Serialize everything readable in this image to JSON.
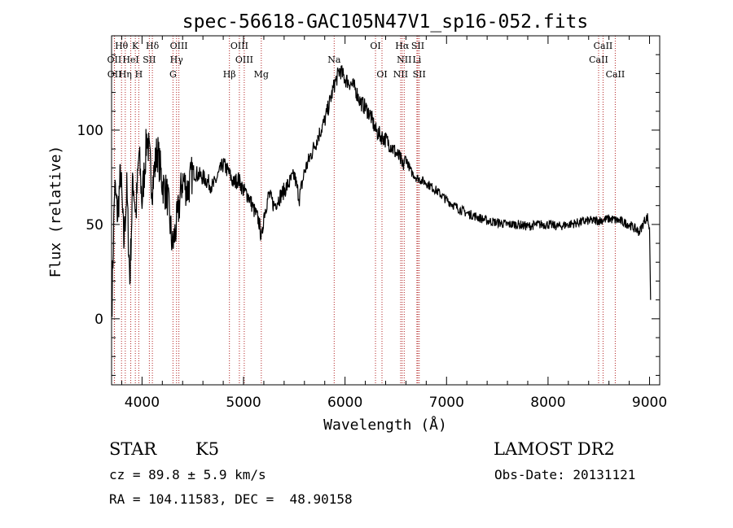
{
  "chart_data": {
    "type": "line",
    "title": "spec-56618-GAC105N47V1_sp16-052.fits",
    "xlabel": "Wavelength (Å)",
    "ylabel": "Flux (relative)",
    "xlim": [
      3700,
      9100
    ],
    "ylim": [
      -35,
      150
    ],
    "xticks": [
      4000,
      5000,
      6000,
      7000,
      8000,
      9000
    ],
    "yticks": [
      0,
      50,
      100
    ],
    "xtick_labels": [
      "4000",
      "5000",
      "6000",
      "7000",
      "8000",
      "9000"
    ],
    "ytick_labels": [
      "0",
      "50",
      "100"
    ],
    "line_color": "#000000",
    "marker_color": "#b22222",
    "spectrum": {
      "x": [
        3705,
        3730,
        3760,
        3790,
        3820,
        3850,
        3880,
        3910,
        3940,
        3970,
        4000,
        4050,
        4100,
        4150,
        4200,
        4250,
        4300,
        4340,
        4400,
        4450,
        4500,
        4600,
        4700,
        4800,
        4850,
        4900,
        4950,
        5000,
        5050,
        5100,
        5150,
        5180,
        5200,
        5250,
        5300,
        5400,
        5500,
        5550,
        5600,
        5700,
        5800,
        5850,
        5900,
        5950,
        6000,
        6050,
        6100,
        6150,
        6200,
        6250,
        6300,
        6350,
        6400,
        6450,
        6500,
        6550,
        6563,
        6600,
        6650,
        6700,
        6800,
        6900,
        7000,
        7100,
        7200,
        7300,
        7400,
        7500,
        7600,
        7700,
        7800,
        7900,
        8000,
        8100,
        8200,
        8300,
        8400,
        8500,
        8600,
        8700,
        8800,
        8850,
        8900,
        8950,
        8980,
        9000,
        9010
      ],
      "y": [
        12,
        70,
        55,
        78,
        40,
        68,
        20,
        75,
        55,
        88,
        62,
        98,
        70,
        90,
        72,
        65,
        38,
        50,
        74,
        68,
        78,
        75,
        70,
        82,
        78,
        72,
        74,
        68,
        65,
        58,
        52,
        42,
        55,
        66,
        60,
        68,
        76,
        64,
        78,
        92,
        105,
        115,
        125,
        132,
        127,
        125,
        122,
        115,
        112,
        108,
        100,
        97,
        95,
        92,
        88,
        84,
        80,
        85,
        78,
        75,
        72,
        68,
        63,
        59,
        56,
        54,
        52,
        51,
        50,
        50,
        49,
        50,
        50,
        49,
        50,
        51,
        52,
        52,
        53,
        52,
        50,
        48,
        46,
        52,
        54,
        47,
        10
      ]
    },
    "line_markers": [
      {
        "label": "Hθ",
        "x": 3798,
        "row": 0
      },
      {
        "label": "K",
        "x": 3934,
        "row": 0
      },
      {
        "label": "Hδ",
        "x": 4102,
        "row": 0
      },
      {
        "label": "OIII",
        "x": 4363,
        "row": 0
      },
      {
        "label": "OIII",
        "x": 4959,
        "row": 0
      },
      {
        "label": "OI",
        "x": 6300,
        "row": 0
      },
      {
        "label": "Hα",
        "x": 6563,
        "row": 0
      },
      {
        "label": "SII",
        "x": 6717,
        "row": 0
      },
      {
        "label": "CaII",
        "x": 8542,
        "row": 0
      },
      {
        "label": "OII",
        "x": 3727,
        "row": 1
      },
      {
        "label": "HeI",
        "x": 3889,
        "row": 1
      },
      {
        "label": "SII",
        "x": 4072,
        "row": 1
      },
      {
        "label": "Hγ",
        "x": 4340,
        "row": 1
      },
      {
        "label": "OIII",
        "x": 5007,
        "row": 1
      },
      {
        "label": "Na",
        "x": 5893,
        "row": 1
      },
      {
        "label": "NII",
        "x": 6583,
        "row": 1
      },
      {
        "label": "Li",
        "x": 6708,
        "row": 1
      },
      {
        "label": "CaII",
        "x": 8498,
        "row": 1
      },
      {
        "label": "OII",
        "x": 3729,
        "row": 2
      },
      {
        "label": "Hη",
        "x": 3835,
        "row": 2
      },
      {
        "label": "H",
        "x": 3968,
        "row": 2
      },
      {
        "label": "G",
        "x": 4305,
        "row": 2
      },
      {
        "label": "Hβ",
        "x": 4861,
        "row": 2
      },
      {
        "label": "Mg",
        "x": 5175,
        "row": 2
      },
      {
        "label": "OI",
        "x": 6364,
        "row": 2
      },
      {
        "label": "NII",
        "x": 6548,
        "row": 2
      },
      {
        "label": "SII",
        "x": 6731,
        "row": 2
      },
      {
        "label": "CaII",
        "x": 8662,
        "row": 2
      }
    ]
  },
  "info": {
    "object_class": "STAR",
    "subclass": "K5",
    "survey": "LAMOST DR2",
    "redshift": "cz = 89.8 ± 5.9 km/s",
    "obs_date": "Obs-Date: 20131121",
    "coords": "RA = 104.11583, DEC =  48.90158"
  }
}
